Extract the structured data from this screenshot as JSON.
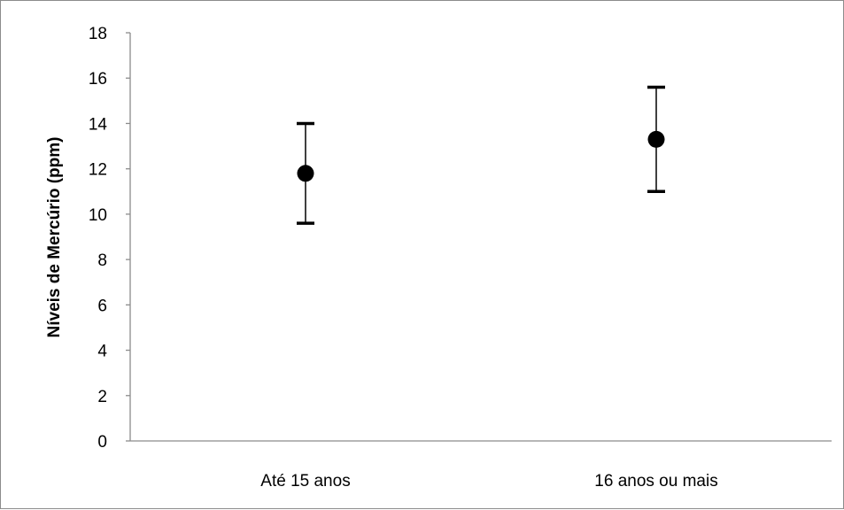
{
  "chart_data": {
    "type": "scatter",
    "title": "",
    "xlabel": "",
    "ylabel": "Níveis de Mercúrio (ppm)",
    "ylim": [
      0,
      18
    ],
    "yticks": [
      0,
      2,
      4,
      6,
      8,
      10,
      12,
      14,
      16,
      18
    ],
    "categories": [
      "Até 15 anos",
      "16 anos ou mais"
    ],
    "series": [
      {
        "values": [
          11.8,
          13.3
        ],
        "error_low": [
          9.6,
          11.0
        ],
        "error_high": [
          14.0,
          15.6
        ]
      }
    ],
    "grid": false,
    "legend": "none",
    "marker_color": "#000000",
    "axis_color": "#8c8c8c"
  }
}
